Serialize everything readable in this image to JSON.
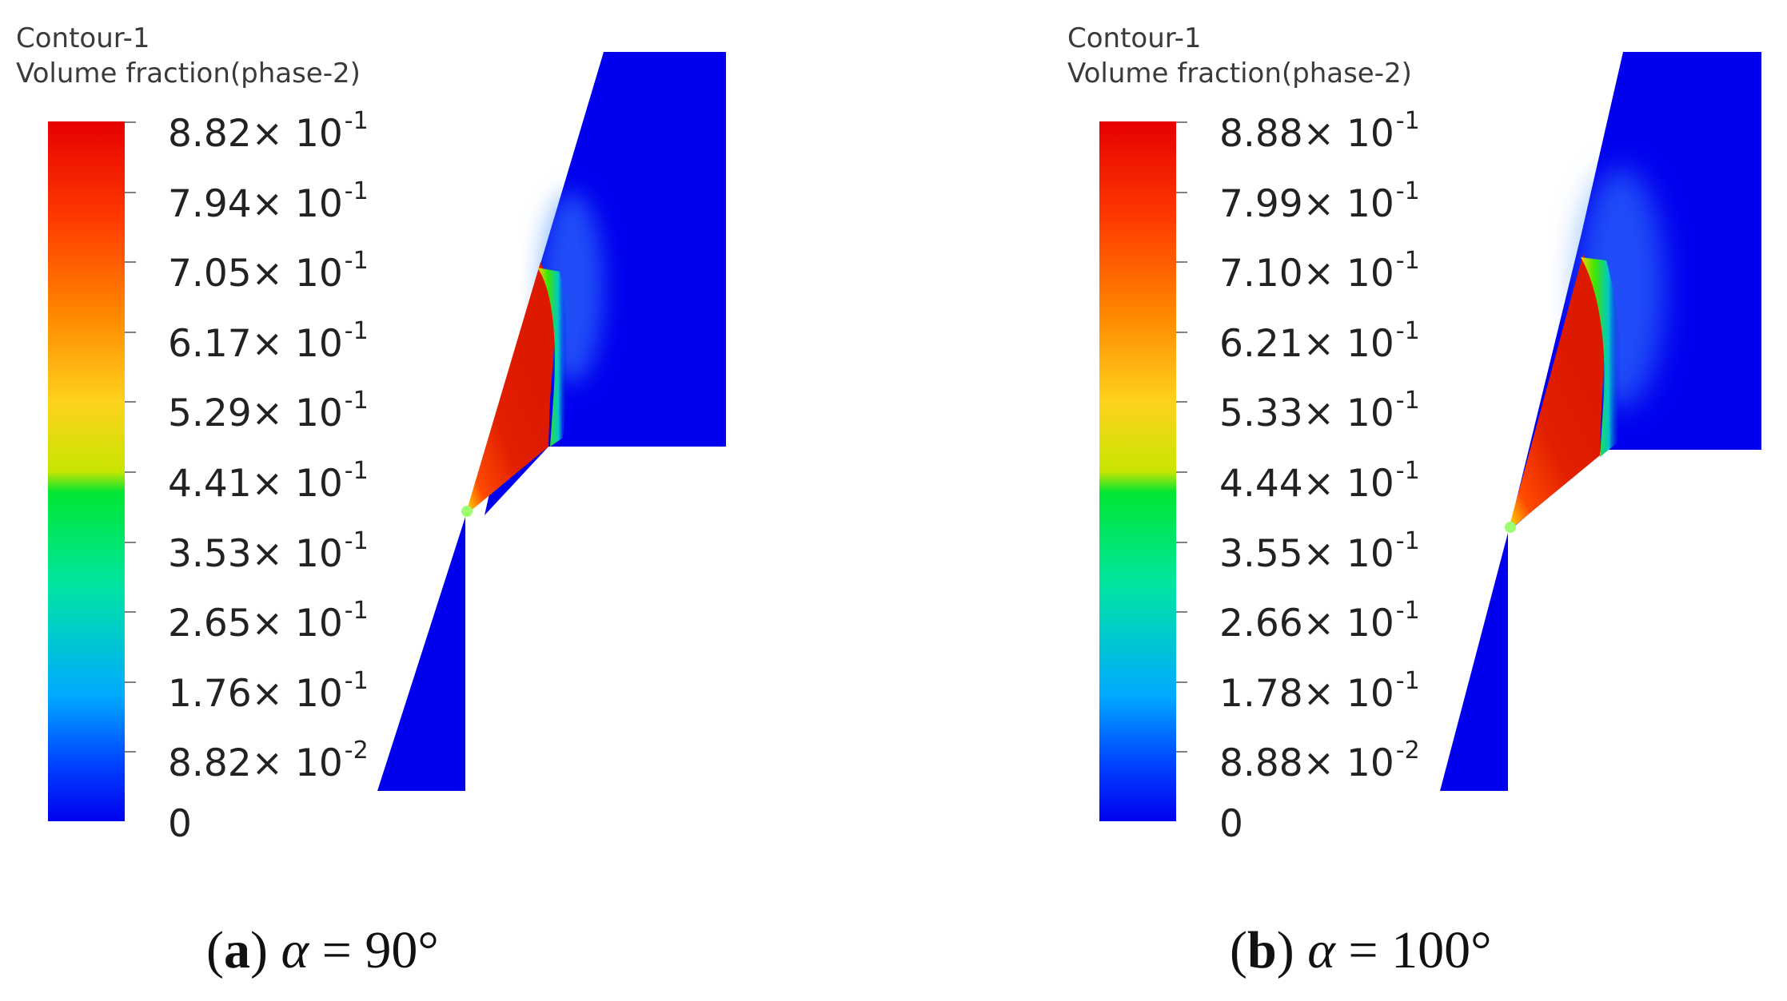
{
  "panels": [
    {
      "id": "a",
      "legend_title_1": "Contour-1",
      "legend_title_2": "Volume fraction(phase-2)",
      "ticks": [
        {
          "mant": "8.82",
          "exp": "-1"
        },
        {
          "mant": "7.94",
          "exp": "-1"
        },
        {
          "mant": "7.05",
          "exp": "-1"
        },
        {
          "mant": "6.17",
          "exp": "-1"
        },
        {
          "mant": "5.29",
          "exp": "-1"
        },
        {
          "mant": "4.41",
          "exp": "-1"
        },
        {
          "mant": "3.53",
          "exp": "-1"
        },
        {
          "mant": "2.65",
          "exp": "-1"
        },
        {
          "mant": "1.76",
          "exp": "-1"
        },
        {
          "mant": "8.82",
          "exp": "-2"
        },
        {
          "mant": "0",
          "exp": ""
        }
      ],
      "caption": {
        "label": "a",
        "symbol": "α",
        "value": "90°"
      }
    },
    {
      "id": "b",
      "legend_title_1": "Contour-1",
      "legend_title_2": "Volume fraction(phase-2)",
      "ticks": [
        {
          "mant": "8.88",
          "exp": "-1"
        },
        {
          "mant": "7.99",
          "exp": "-1"
        },
        {
          "mant": "7.10",
          "exp": "-1"
        },
        {
          "mant": "6.21",
          "exp": "-1"
        },
        {
          "mant": "5.33",
          "exp": "-1"
        },
        {
          "mant": "4.44",
          "exp": "-1"
        },
        {
          "mant": "3.55",
          "exp": "-1"
        },
        {
          "mant": "2.66",
          "exp": "-1"
        },
        {
          "mant": "1.78",
          "exp": "-1"
        },
        {
          "mant": "8.88",
          "exp": "-2"
        },
        {
          "mant": "0",
          "exp": ""
        }
      ],
      "caption": {
        "label": "b",
        "symbol": "α",
        "value": "100°"
      }
    }
  ],
  "colors": {
    "blue": "#0000ee",
    "red": "#dd1a00",
    "green": "#00e640"
  }
}
